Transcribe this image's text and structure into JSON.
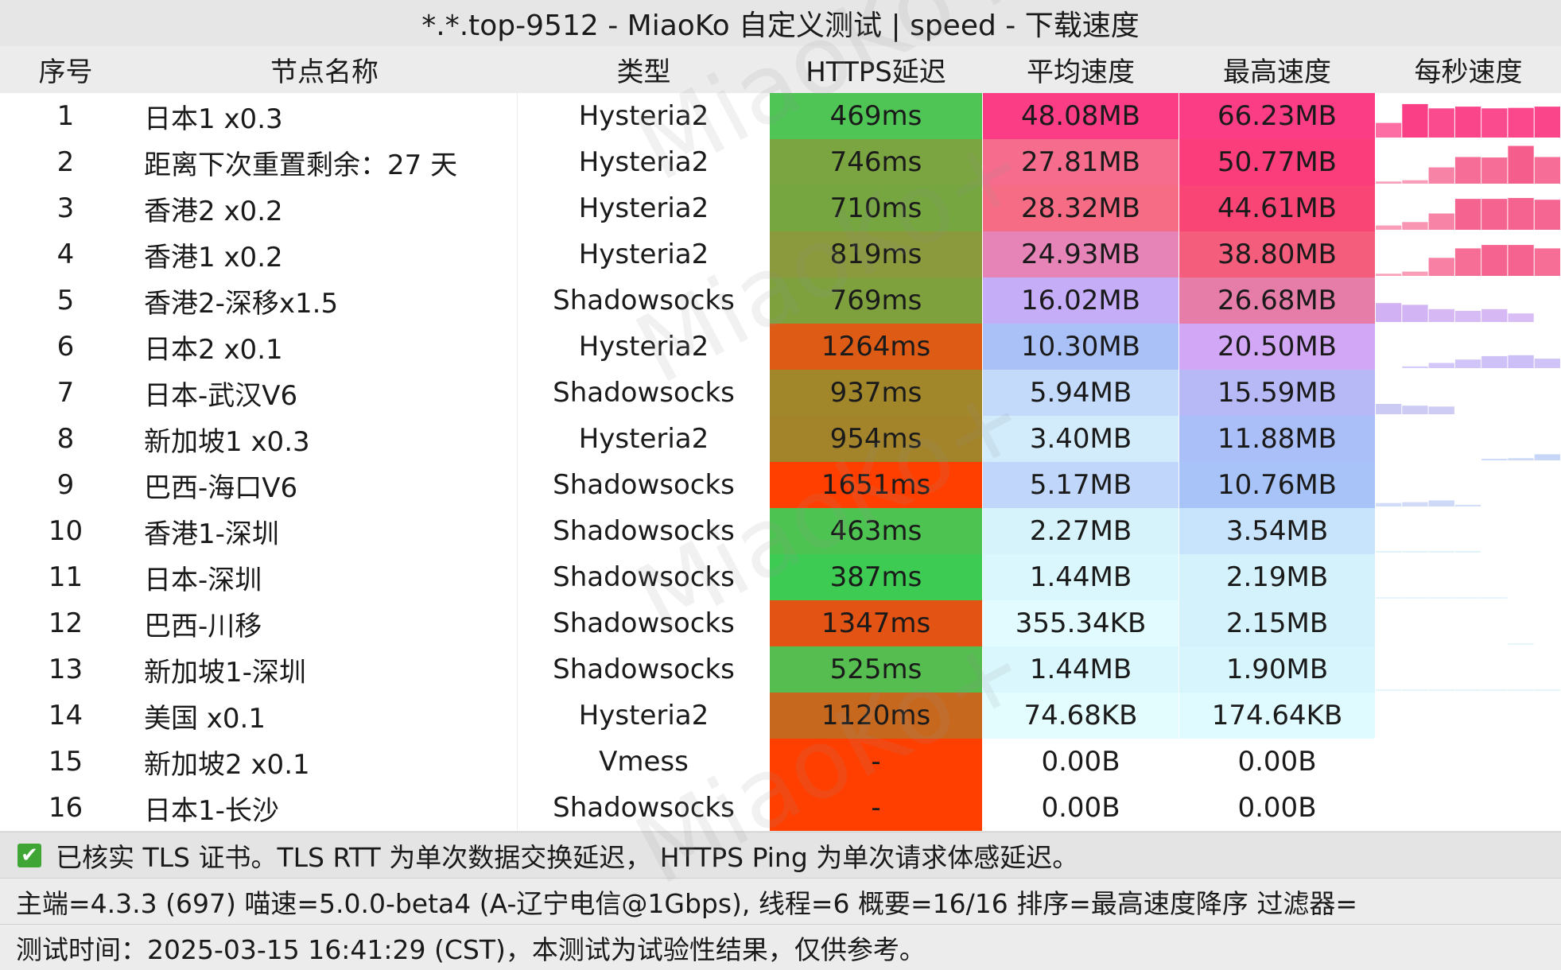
{
  "title": "*.*.top-9512 - MiaoKo 自定义测试 | speed - 下载速度",
  "columns": [
    "序号",
    "节点名称",
    "类型",
    "HTTPS延迟",
    "平均速度",
    "最高速度",
    "每秒速度"
  ],
  "rows": [
    {
      "idx": "1",
      "name": "日本1 x0.3",
      "type": "Hysteria2",
      "latency": "469ms",
      "avg": "48.08MB",
      "max": "66.23MB",
      "lat_color": "#4fc555",
      "avg_color": "#fb3d86",
      "max_color": "#fb3d86",
      "spark": [
        0.34,
        0.78,
        0.68,
        0.72,
        0.68,
        0.69,
        0.72
      ],
      "spark_color": "#fb3d86"
    },
    {
      "idx": "2",
      "name": "距离下次重置剩余：27 天",
      "type": "Hysteria2",
      "latency": "746ms",
      "avg": "27.81MB",
      "max": "50.77MB",
      "lat_color": "#7ba540",
      "avg_color": "#f66c8d",
      "max_color": "#fb3d7c",
      "spark": [
        0.05,
        0.08,
        0.38,
        0.62,
        0.61,
        0.88,
        0.62
      ],
      "spark_color": "#f55e8c"
    },
    {
      "idx": "3",
      "name": "香港2 x0.2",
      "type": "Hysteria2",
      "latency": "710ms",
      "avg": "28.32MB",
      "max": "44.61MB",
      "lat_color": "#76a63f",
      "avg_color": "#f76c85",
      "max_color": "#f94476",
      "spark": [
        0.1,
        0.18,
        0.38,
        0.72,
        0.72,
        0.74,
        0.7
      ],
      "spark_color": "#f55e8c"
    },
    {
      "idx": "4",
      "name": "香港1 x0.2",
      "type": "Hysteria2",
      "latency": "819ms",
      "avg": "24.93MB",
      "max": "38.80MB",
      "lat_color": "#8a9a3c",
      "avg_color": "#e684b8",
      "max_color": "#f55d7d",
      "spark": [
        0.05,
        0.1,
        0.42,
        0.64,
        0.72,
        0.72,
        0.64
      ],
      "spark_color": "#f55e8c"
    },
    {
      "idx": "5",
      "name": "香港2-深移x1.5",
      "type": "Shadowsocks",
      "latency": "769ms",
      "avg": "16.02MB",
      "max": "26.68MB",
      "lat_color": "#7ea13e",
      "avg_color": "#c5adf8",
      "max_color": "#e67ca8",
      "spark": [
        0.44,
        0.4,
        0.3,
        0.26,
        0.3,
        0.2,
        0.0
      ],
      "spark_color": "#c59ef0"
    },
    {
      "idx": "6",
      "name": "日本2 x0.1",
      "type": "Hysteria2",
      "latency": "1264ms",
      "avg": "10.30MB",
      "max": "20.50MB",
      "lat_color": "#de5b16",
      "avg_color": "#a9c1f7",
      "max_color": "#d2a7f5",
      "spark": [
        0.0,
        0.04,
        0.12,
        0.2,
        0.28,
        0.3,
        0.22
      ],
      "spark_color": "#b9a7f5"
    },
    {
      "idx": "7",
      "name": "日本-武汉V6",
      "type": "Shadowsocks",
      "latency": "937ms",
      "avg": "5.94MB",
      "max": "15.59MB",
      "lat_color": "#a2862a",
      "avg_color": "#c3dafb",
      "max_color": "#b7b8f6",
      "spark": [
        0.24,
        0.2,
        0.18,
        0.0,
        0.0,
        0.0,
        0.0
      ],
      "spark_color": "#b4b2ef"
    },
    {
      "idx": "8",
      "name": "新加坡1 x0.3",
      "type": "Hysteria2",
      "latency": "954ms",
      "avg": "3.40MB",
      "max": "11.88MB",
      "lat_color": "#a3842a",
      "avg_color": "#d2ecfc",
      "max_color": "#aabef7",
      "spark": [
        0.0,
        0.0,
        0.0,
        0.0,
        0.02,
        0.05,
        0.14
      ],
      "spark_color": "#a9c0f3"
    },
    {
      "idx": "9",
      "name": "巴西-海口V6",
      "type": "Shadowsocks",
      "latency": "1651ms",
      "avg": "5.17MB",
      "max": "10.76MB",
      "lat_color": "#ff3f00",
      "avg_color": "#c0d7fb",
      "max_color": "#a7c3f7",
      "spark": [
        0.08,
        0.1,
        0.14,
        0.04,
        0.0,
        0.0,
        0.0
      ],
      "spark_color": "#b3c4f3"
    },
    {
      "idx": "10",
      "name": "香港1-深圳",
      "type": "Shadowsocks",
      "latency": "463ms",
      "avg": "2.27MB",
      "max": "3.54MB",
      "lat_color": "#4dc451",
      "avg_color": "#d6f3fb",
      "max_color": "#c8e4fc",
      "spark": [
        0.03,
        0.02,
        0.02,
        0.02,
        0.0,
        0.0,
        0.0
      ],
      "spark_color": "#c8e8f7"
    },
    {
      "idx": "11",
      "name": "日本-深圳",
      "type": "Shadowsocks",
      "latency": "387ms",
      "avg": "1.44MB",
      "max": "2.19MB",
      "lat_color": "#3ecb54",
      "avg_color": "#daf7fd",
      "max_color": "#d3f2fb",
      "spark": [
        0.03,
        0.02,
        0.02,
        0.02,
        0.02,
        0.0,
        0.0
      ],
      "spark_color": "#d0eef8"
    },
    {
      "idx": "12",
      "name": "巴西-川移",
      "type": "Shadowsocks",
      "latency": "1347ms",
      "avg": "355.34KB",
      "max": "2.15MB",
      "lat_color": "#e35314",
      "avg_color": "#e1fbff",
      "max_color": "#d3f2fb",
      "spark": [
        0.0,
        0.0,
        0.0,
        0.0,
        0.0,
        0.02,
        0.0
      ],
      "spark_color": "#d0eef8"
    },
    {
      "idx": "13",
      "name": "新加坡1-深圳",
      "type": "Shadowsocks",
      "latency": "525ms",
      "avg": "1.44MB",
      "max": "1.90MB",
      "lat_color": "#56bd50",
      "avg_color": "#daf7fd",
      "max_color": "#d7f5fc",
      "spark": [
        0.03,
        0.02,
        0.02,
        0.02,
        0.02,
        0.02,
        0.03
      ],
      "spark_color": "#d0eef8"
    },
    {
      "idx": "14",
      "name": "美国 x0.1",
      "type": "Hysteria2",
      "latency": "1120ms",
      "avg": "74.68KB",
      "max": "174.64KB",
      "lat_color": "#c7681f",
      "avg_color": "#e3fdff",
      "max_color": "#e0fbff",
      "spark": [
        0.0,
        0.0,
        0.0,
        0.0,
        0.0,
        0.0,
        0.0
      ],
      "spark_color": "#d0eef8"
    },
    {
      "idx": "15",
      "name": "新加坡2 x0.1",
      "type": "Vmess",
      "latency": "-",
      "avg": "0.00B",
      "max": "0.00B",
      "lat_color": "#ff3f00",
      "avg_color": "#ffffff",
      "max_color": "#ffffff",
      "spark": [
        0,
        0,
        0,
        0,
        0,
        0,
        0
      ],
      "spark_color": "#ffffff"
    },
    {
      "idx": "16",
      "name": "日本1-长沙",
      "type": "Shadowsocks",
      "latency": "-",
      "avg": "0.00B",
      "max": "0.00B",
      "lat_color": "#ff3f00",
      "avg_color": "#ffffff",
      "max_color": "#ffffff",
      "spark": [
        0,
        0,
        0,
        0,
        0,
        0,
        0
      ],
      "spark_color": "#ffffff"
    }
  ],
  "footer": {
    "tls_note": "已核实 TLS 证书。TLS RTT 为单次数据交换延迟， HTTPS Ping 为单次请求体感延迟。",
    "info": "主端=4.3.3 (697) 喵速=5.0.0-beta4 (A-辽宁电信@1Gbps), 线程=6 概要=16/16 排序=最高速度降序 过滤器=",
    "time": "测试时间：2025-03-15 16:41:29 (CST)，本测试为试验性结果，仅供参考。"
  },
  "watermark": "MiaoKo+"
}
